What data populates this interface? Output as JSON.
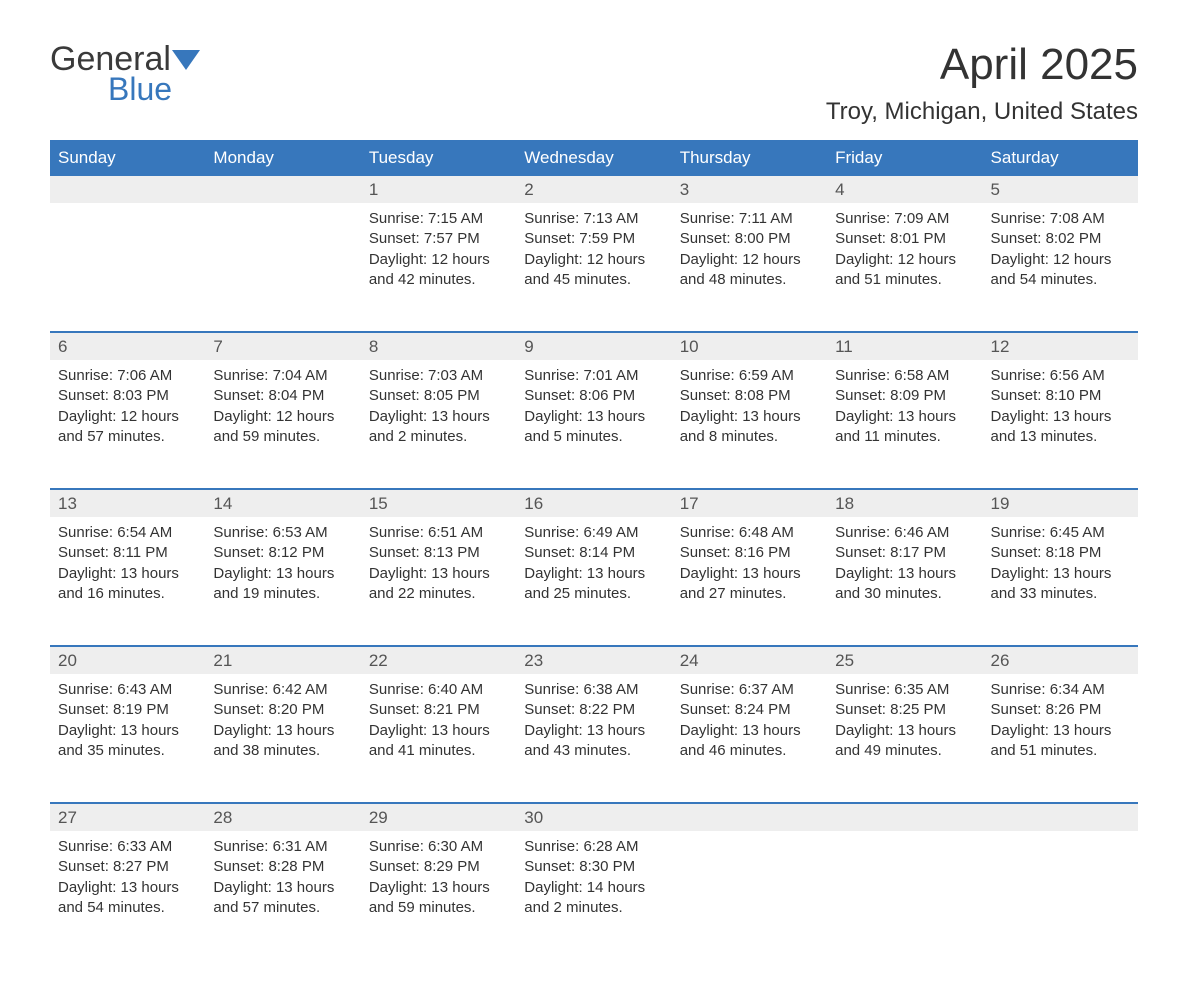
{
  "logo": {
    "general": "General",
    "blue": "Blue"
  },
  "title": "April 2025",
  "location": "Troy, Michigan, United States",
  "colors": {
    "accent": "#3777bc",
    "header_text": "#ffffff",
    "daynum_bg": "#eeeeee",
    "text": "#333333",
    "background": "#ffffff"
  },
  "day_names": [
    "Sunday",
    "Monday",
    "Tuesday",
    "Wednesday",
    "Thursday",
    "Friday",
    "Saturday"
  ],
  "labels": {
    "sunrise": "Sunrise:",
    "sunset": "Sunset:",
    "daylight": "Daylight:"
  },
  "weeks": [
    [
      null,
      null,
      {
        "n": "1",
        "sr": "7:15 AM",
        "ss": "7:57 PM",
        "dh": "12 hours",
        "dm": "and 42 minutes."
      },
      {
        "n": "2",
        "sr": "7:13 AM",
        "ss": "7:59 PM",
        "dh": "12 hours",
        "dm": "and 45 minutes."
      },
      {
        "n": "3",
        "sr": "7:11 AM",
        "ss": "8:00 PM",
        "dh": "12 hours",
        "dm": "and 48 minutes."
      },
      {
        "n": "4",
        "sr": "7:09 AM",
        "ss": "8:01 PM",
        "dh": "12 hours",
        "dm": "and 51 minutes."
      },
      {
        "n": "5",
        "sr": "7:08 AM",
        "ss": "8:02 PM",
        "dh": "12 hours",
        "dm": "and 54 minutes."
      }
    ],
    [
      {
        "n": "6",
        "sr": "7:06 AM",
        "ss": "8:03 PM",
        "dh": "12 hours",
        "dm": "and 57 minutes."
      },
      {
        "n": "7",
        "sr": "7:04 AM",
        "ss": "8:04 PM",
        "dh": "12 hours",
        "dm": "and 59 minutes."
      },
      {
        "n": "8",
        "sr": "7:03 AM",
        "ss": "8:05 PM",
        "dh": "13 hours",
        "dm": "and 2 minutes."
      },
      {
        "n": "9",
        "sr": "7:01 AM",
        "ss": "8:06 PM",
        "dh": "13 hours",
        "dm": "and 5 minutes."
      },
      {
        "n": "10",
        "sr": "6:59 AM",
        "ss": "8:08 PM",
        "dh": "13 hours",
        "dm": "and 8 minutes."
      },
      {
        "n": "11",
        "sr": "6:58 AM",
        "ss": "8:09 PM",
        "dh": "13 hours",
        "dm": "and 11 minutes."
      },
      {
        "n": "12",
        "sr": "6:56 AM",
        "ss": "8:10 PM",
        "dh": "13 hours",
        "dm": "and 13 minutes."
      }
    ],
    [
      {
        "n": "13",
        "sr": "6:54 AM",
        "ss": "8:11 PM",
        "dh": "13 hours",
        "dm": "and 16 minutes."
      },
      {
        "n": "14",
        "sr": "6:53 AM",
        "ss": "8:12 PM",
        "dh": "13 hours",
        "dm": "and 19 minutes."
      },
      {
        "n": "15",
        "sr": "6:51 AM",
        "ss": "8:13 PM",
        "dh": "13 hours",
        "dm": "and 22 minutes."
      },
      {
        "n": "16",
        "sr": "6:49 AM",
        "ss": "8:14 PM",
        "dh": "13 hours",
        "dm": "and 25 minutes."
      },
      {
        "n": "17",
        "sr": "6:48 AM",
        "ss": "8:16 PM",
        "dh": "13 hours",
        "dm": "and 27 minutes."
      },
      {
        "n": "18",
        "sr": "6:46 AM",
        "ss": "8:17 PM",
        "dh": "13 hours",
        "dm": "and 30 minutes."
      },
      {
        "n": "19",
        "sr": "6:45 AM",
        "ss": "8:18 PM",
        "dh": "13 hours",
        "dm": "and 33 minutes."
      }
    ],
    [
      {
        "n": "20",
        "sr": "6:43 AM",
        "ss": "8:19 PM",
        "dh": "13 hours",
        "dm": "and 35 minutes."
      },
      {
        "n": "21",
        "sr": "6:42 AM",
        "ss": "8:20 PM",
        "dh": "13 hours",
        "dm": "and 38 minutes."
      },
      {
        "n": "22",
        "sr": "6:40 AM",
        "ss": "8:21 PM",
        "dh": "13 hours",
        "dm": "and 41 minutes."
      },
      {
        "n": "23",
        "sr": "6:38 AM",
        "ss": "8:22 PM",
        "dh": "13 hours",
        "dm": "and 43 minutes."
      },
      {
        "n": "24",
        "sr": "6:37 AM",
        "ss": "8:24 PM",
        "dh": "13 hours",
        "dm": "and 46 minutes."
      },
      {
        "n": "25",
        "sr": "6:35 AM",
        "ss": "8:25 PM",
        "dh": "13 hours",
        "dm": "and 49 minutes."
      },
      {
        "n": "26",
        "sr": "6:34 AM",
        "ss": "8:26 PM",
        "dh": "13 hours",
        "dm": "and 51 minutes."
      }
    ],
    [
      {
        "n": "27",
        "sr": "6:33 AM",
        "ss": "8:27 PM",
        "dh": "13 hours",
        "dm": "and 54 minutes."
      },
      {
        "n": "28",
        "sr": "6:31 AM",
        "ss": "8:28 PM",
        "dh": "13 hours",
        "dm": "and 57 minutes."
      },
      {
        "n": "29",
        "sr": "6:30 AM",
        "ss": "8:29 PM",
        "dh": "13 hours",
        "dm": "and 59 minutes."
      },
      {
        "n": "30",
        "sr": "6:28 AM",
        "ss": "8:30 PM",
        "dh": "14 hours",
        "dm": "and 2 minutes."
      },
      null,
      null,
      null
    ]
  ]
}
